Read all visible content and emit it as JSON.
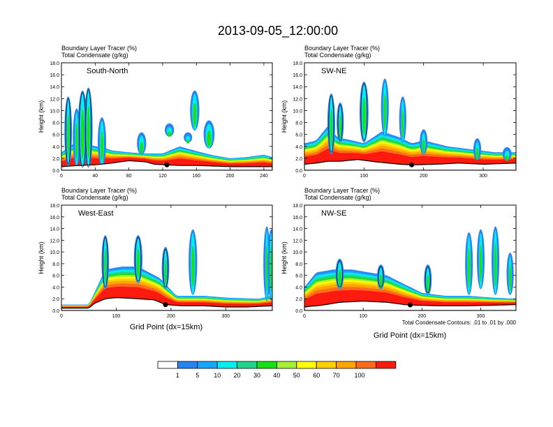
{
  "title": "2013-09-05_12:00:00",
  "xlabel": "Grid Point (dx=15km)",
  "contour_note": "Total Condensate Contours: .01 to .01 by .000",
  "colorbar": {
    "colors": [
      "#ffffff",
      "#2b83f2",
      "#19a6ff",
      "#00f0f0",
      "#22d38a",
      "#18e018",
      "#a6f03a",
      "#ffff00",
      "#ffd000",
      "#ffa500",
      "#ff6a1c",
      "#ff1a10"
    ],
    "labels": [
      "1",
      "5",
      "10",
      "20",
      "30",
      "40",
      "50",
      "60",
      "70",
      "100"
    ]
  },
  "chart_data": [
    {
      "type": "heatmap",
      "name": "South-North",
      "label_line1": "Boundary Layer Tracer   (%)",
      "label_line2": "Total Condensate   (g/kg)",
      "ylabel": "Height (km)",
      "xlim": [
        0,
        250
      ],
      "ylim": [
        0,
        18
      ],
      "xticks": [
        "0",
        "40",
        "80",
        "120",
        "160",
        "200",
        "240"
      ],
      "xtick_values": [
        0,
        40,
        80,
        120,
        160,
        200,
        240
      ],
      "yticks": [
        "0.0",
        "2.0",
        "4.0",
        "6.0",
        "8.0",
        "10.0",
        "12.0",
        "14.0",
        "16.0",
        "18.0"
      ],
      "yticks_values": [
        0,
        2,
        4,
        6,
        8,
        10,
        12,
        14,
        16,
        18
      ],
      "terrain": [
        [
          0,
          0.6
        ],
        [
          20,
          0.8
        ],
        [
          40,
          0.9
        ],
        [
          60,
          1.2
        ],
        [
          80,
          1.6
        ],
        [
          100,
          1.4
        ],
        [
          110,
          1.0
        ],
        [
          125,
          0.9
        ],
        [
          140,
          0.8
        ],
        [
          160,
          0.8
        ],
        [
          180,
          0.7
        ],
        [
          200,
          0.6
        ],
        [
          220,
          0.6
        ],
        [
          250,
          0.6
        ]
      ],
      "bl_top": [
        [
          0,
          3.0
        ],
        [
          10,
          4.0
        ],
        [
          20,
          5.0
        ],
        [
          30,
          4.5
        ],
        [
          40,
          4.0
        ],
        [
          50,
          3.8
        ],
        [
          60,
          3.3
        ],
        [
          80,
          3.0
        ],
        [
          100,
          2.8
        ],
        [
          120,
          2.8
        ],
        [
          140,
          4.0
        ],
        [
          160,
          3.2
        ],
        [
          180,
          2.5
        ],
        [
          200,
          2.0
        ],
        [
          220,
          2.2
        ],
        [
          240,
          2.6
        ],
        [
          250,
          2.2
        ]
      ],
      "plumes": [
        [
          25,
          0.5,
          13.0,
          6
        ],
        [
          32,
          0.5,
          13.5,
          5
        ],
        [
          8,
          1,
          12.0,
          4
        ],
        [
          18,
          1,
          10.0,
          4
        ],
        [
          48,
          1,
          8.5,
          5
        ],
        [
          175,
          4,
          8.0,
          8
        ],
        [
          158,
          7,
          13.0,
          6
        ],
        [
          128,
          6,
          7.5,
          6
        ],
        [
          150,
          5,
          6.0,
          5
        ],
        [
          95,
          3,
          6.0,
          6
        ]
      ],
      "station_x": 125
    },
    {
      "type": "heatmap",
      "name": "SW-NE",
      "label_line1": "Boundary Layer Tracer   (%)",
      "label_line2": "Total Condensate   (g/kg)",
      "ylabel": "Height (km)",
      "xlim": [
        0,
        355
      ],
      "ylim": [
        0,
        18
      ],
      "xticks": [
        "0",
        "100",
        "200",
        "300"
      ],
      "xtick_values": [
        0,
        100,
        200,
        300
      ],
      "yticks": [
        "0.0",
        "2.0",
        "4.0",
        "6.0",
        "8.0",
        "10.0",
        "12.0",
        "14.0",
        "16.0",
        "18.0"
      ],
      "yticks_values": [
        0,
        2,
        4,
        6,
        8,
        10,
        12,
        14,
        16,
        18
      ],
      "terrain": [
        [
          0,
          1.0
        ],
        [
          20,
          1.2
        ],
        [
          40,
          1.5
        ],
        [
          60,
          1.5
        ],
        [
          90,
          1.8
        ],
        [
          120,
          1.4
        ],
        [
          160,
          1.0
        ],
        [
          180,
          0.9
        ],
        [
          220,
          1.0
        ],
        [
          260,
          1.2
        ],
        [
          300,
          1.0
        ],
        [
          355,
          1.2
        ]
      ],
      "bl_top": [
        [
          0,
          4.5
        ],
        [
          20,
          5.0
        ],
        [
          40,
          7.5
        ],
        [
          55,
          5.5
        ],
        [
          80,
          5.0
        ],
        [
          100,
          4.5
        ],
        [
          130,
          6.5
        ],
        [
          160,
          5.5
        ],
        [
          180,
          4.5
        ],
        [
          200,
          5.0
        ],
        [
          240,
          4.0
        ],
        [
          280,
          3.5
        ],
        [
          320,
          3.0
        ],
        [
          355,
          3.0
        ]
      ],
      "plumes": [
        [
          45,
          3,
          12.5,
          6
        ],
        [
          60,
          5,
          11.0,
          5
        ],
        [
          100,
          5,
          14.5,
          8
        ],
        [
          135,
          6,
          15.0,
          6
        ],
        [
          165,
          5,
          12.0,
          5
        ],
        [
          200,
          3,
          6.5,
          6
        ],
        [
          290,
          2,
          5.0,
          6
        ],
        [
          340,
          2,
          3.5,
          8
        ]
      ],
      "station_x": 180
    },
    {
      "type": "heatmap",
      "name": "West-East",
      "label_line1": "Boundary Layer Tracer   (%)",
      "label_line2": "Total Condensate   (g/kg)",
      "ylabel": "Height (km)",
      "xlim": [
        0,
        385
      ],
      "ylim": [
        0,
        18
      ],
      "xticks": [
        "0",
        "100",
        "200",
        "300"
      ],
      "xtick_values": [
        0,
        100,
        200,
        300
      ],
      "yticks": [
        "0.0",
        "2.0",
        "4.0",
        "6.0",
        "8.0",
        "10.0",
        "12.0",
        "14.0",
        "16.0",
        "18.0"
      ],
      "yticks_values": [
        0,
        2,
        4,
        6,
        8,
        10,
        12,
        14,
        16,
        18
      ],
      "terrain": [
        [
          0,
          0.4
        ],
        [
          50,
          0.4
        ],
        [
          60,
          1.2
        ],
        [
          80,
          2.0
        ],
        [
          100,
          2.2
        ],
        [
          140,
          2.0
        ],
        [
          170,
          1.8
        ],
        [
          190,
          1.0
        ],
        [
          220,
          0.8
        ],
        [
          260,
          0.8
        ],
        [
          300,
          0.6
        ],
        [
          340,
          0.6
        ],
        [
          385,
          0.8
        ]
      ],
      "bl_top": [
        [
          0,
          1.0
        ],
        [
          50,
          1.0
        ],
        [
          60,
          3.0
        ],
        [
          80,
          7.0
        ],
        [
          110,
          7.5
        ],
        [
          140,
          7.5
        ],
        [
          160,
          6.5
        ],
        [
          180,
          5.5
        ],
        [
          195,
          4.0
        ],
        [
          210,
          2.5
        ],
        [
          260,
          2.5
        ],
        [
          300,
          2.2
        ],
        [
          360,
          2.0
        ],
        [
          385,
          2.5
        ]
      ],
      "plumes": [
        [
          80,
          4,
          12.5,
          6
        ],
        [
          140,
          5,
          12.5,
          8
        ],
        [
          190,
          4,
          10.5,
          6
        ],
        [
          240,
          3,
          13.5,
          8
        ],
        [
          375,
          2,
          14.0,
          5
        ],
        [
          383,
          2,
          13.5,
          4
        ]
      ],
      "station_x": 190
    },
    {
      "type": "heatmap",
      "name": "NW-SE",
      "label_line1": "Boundary Layer Tracer   (%)",
      "label_line2": "Total Condensate   (g/kg)",
      "ylabel": "Height (km)",
      "xlim": [
        0,
        360
      ],
      "ylim": [
        0,
        18
      ],
      "xticks": [
        "0",
        "100",
        "200",
        "300"
      ],
      "xtick_values": [
        0,
        100,
        200,
        300
      ],
      "yticks": [
        "0.0",
        "2.0",
        "4.0",
        "6.0",
        "8.0",
        "10.0",
        "12.0",
        "14.0",
        "16.0",
        "18.0"
      ],
      "yticks_values": [
        0,
        2,
        4,
        6,
        8,
        10,
        12,
        14,
        16,
        18
      ],
      "terrain": [
        [
          0,
          0.6
        ],
        [
          30,
          0.9
        ],
        [
          60,
          1.4
        ],
        [
          100,
          1.6
        ],
        [
          140,
          1.4
        ],
        [
          170,
          1.0
        ],
        [
          190,
          0.9
        ],
        [
          230,
          0.8
        ],
        [
          280,
          0.8
        ],
        [
          320,
          0.9
        ],
        [
          360,
          1.0
        ]
      ],
      "bl_top": [
        [
          0,
          4.0
        ],
        [
          20,
          6.5
        ],
        [
          50,
          7.0
        ],
        [
          80,
          7.0
        ],
        [
          110,
          6.5
        ],
        [
          140,
          6.0
        ],
        [
          170,
          4.5
        ],
        [
          200,
          3.0
        ],
        [
          240,
          2.5
        ],
        [
          280,
          2.5
        ],
        [
          320,
          2.2
        ],
        [
          360,
          2.0
        ]
      ],
      "plumes": [
        [
          60,
          4,
          8.5,
          7
        ],
        [
          130,
          4,
          7.5,
          6
        ],
        [
          210,
          3,
          7.5,
          6
        ],
        [
          280,
          3,
          13.0,
          6
        ],
        [
          300,
          4,
          13.5,
          6
        ],
        [
          325,
          3,
          14.0,
          6
        ],
        [
          350,
          3,
          9.5,
          5
        ]
      ],
      "station_x": 180
    }
  ]
}
